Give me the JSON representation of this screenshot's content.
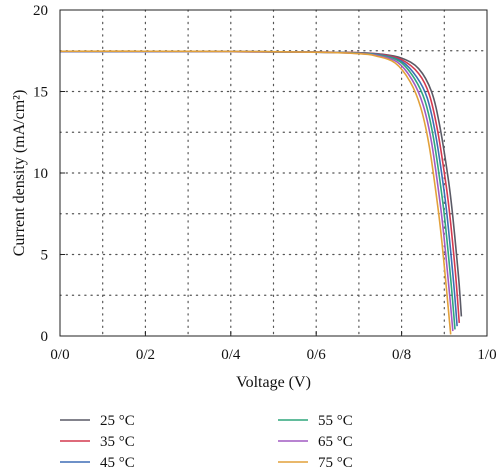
{
  "chart_data": {
    "type": "line",
    "xlabel": "Voltage (V)",
    "ylabel": "Current density (mA/cm²)",
    "xlim": [
      0,
      1
    ],
    "ylim": [
      0,
      20
    ],
    "x_ticks": [
      0,
      0.2,
      0.4,
      0.6,
      0.8,
      1.0
    ],
    "x_tick_labels": [
      "0/0",
      "0/2",
      "0/4",
      "0/6",
      "0/8",
      "1/0"
    ],
    "y_ticks": [
      0,
      5,
      10,
      15,
      20
    ],
    "y_tick_labels": [
      "0",
      "5",
      "10",
      "15",
      "20"
    ],
    "grid": true,
    "legend_position": "bottom, outside plot",
    "series": [
      {
        "name": "25 °C",
        "color": "#5a5a66",
        "x": [
          0,
          0.2,
          0.4,
          0.6,
          0.7,
          0.75,
          0.8,
          0.84,
          0.87,
          0.89,
          0.91,
          0.92,
          0.93,
          0.935,
          0.94
        ],
        "y": [
          17.45,
          17.45,
          17.44,
          17.42,
          17.38,
          17.3,
          17.05,
          16.4,
          15.0,
          12.8,
          9.5,
          7.3,
          4.6,
          3.1,
          1.2
        ]
      },
      {
        "name": "35 °C",
        "color": "#d4394e",
        "x": [
          0,
          0.2,
          0.4,
          0.6,
          0.7,
          0.75,
          0.8,
          0.84,
          0.865,
          0.885,
          0.905,
          0.915,
          0.925,
          0.93,
          0.935
        ],
        "y": [
          17.45,
          17.45,
          17.44,
          17.42,
          17.38,
          17.28,
          16.95,
          16.1,
          14.8,
          12.5,
          9.1,
          6.9,
          4.2,
          2.6,
          0.8
        ]
      },
      {
        "name": "45 °C",
        "color": "#3e6db5",
        "x": [
          0,
          0.2,
          0.4,
          0.6,
          0.7,
          0.75,
          0.8,
          0.835,
          0.86,
          0.88,
          0.9,
          0.91,
          0.92,
          0.925,
          0.93
        ],
        "y": [
          17.45,
          17.45,
          17.44,
          17.41,
          17.36,
          17.25,
          16.85,
          15.9,
          14.6,
          12.3,
          8.8,
          6.5,
          3.8,
          2.3,
          0.6
        ]
      },
      {
        "name": "55 °C",
        "color": "#2fa67c",
        "x": [
          0,
          0.2,
          0.4,
          0.6,
          0.7,
          0.75,
          0.795,
          0.83,
          0.855,
          0.875,
          0.895,
          0.905,
          0.915,
          0.92,
          0.925
        ],
        "y": [
          17.46,
          17.46,
          17.45,
          17.41,
          17.35,
          17.22,
          16.85,
          15.8,
          14.4,
          12.1,
          8.5,
          6.2,
          3.5,
          2.0,
          0.4
        ]
      },
      {
        "name": "65 °C",
        "color": "#a05ac2",
        "x": [
          0,
          0.2,
          0.4,
          0.6,
          0.7,
          0.745,
          0.79,
          0.825,
          0.85,
          0.87,
          0.89,
          0.9,
          0.91,
          0.915,
          0.92
        ],
        "y": [
          17.46,
          17.46,
          17.45,
          17.41,
          17.33,
          17.2,
          16.8,
          15.7,
          14.2,
          11.9,
          8.2,
          5.9,
          3.2,
          1.8,
          0.3
        ]
      },
      {
        "name": "75 °C",
        "color": "#e2a13a",
        "x": [
          0,
          0.2,
          0.4,
          0.6,
          0.7,
          0.74,
          0.785,
          0.82,
          0.845,
          0.865,
          0.885,
          0.895,
          0.905,
          0.91,
          0.915
        ],
        "y": [
          17.47,
          17.47,
          17.46,
          17.41,
          17.32,
          17.18,
          16.75,
          15.6,
          14.0,
          11.6,
          7.9,
          5.6,
          2.9,
          1.5,
          0.1
        ]
      }
    ]
  }
}
